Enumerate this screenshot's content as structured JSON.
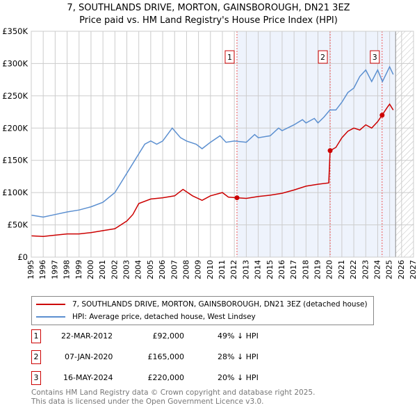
{
  "title": "7, SOUTHLANDS DRIVE, MORTON, GAINSBOROUGH, DN21 3EZ",
  "subtitle": "Price paid vs. HM Land Registry's House Price Index (HPI)",
  "colors": {
    "price": "#cc0000",
    "hpi": "#5b8fd0",
    "shade": "#eef3fc"
  },
  "chart_data": {
    "type": "line",
    "xlim": [
      1995,
      2027
    ],
    "ylim": [
      0,
      350000
    ],
    "x_ticks": [
      1995,
      1996,
      1997,
      1998,
      1999,
      2000,
      2001,
      2002,
      2003,
      2004,
      2005,
      2006,
      2007,
      2008,
      2009,
      2010,
      2011,
      2012,
      2013,
      2014,
      2015,
      2016,
      2017,
      2018,
      2019,
      2020,
      2021,
      2022,
      2023,
      2024,
      2025,
      2026,
      2027
    ],
    "y_ticks": [
      {
        "v": 0,
        "label": "£0"
      },
      {
        "v": 50000,
        "label": "£50K"
      },
      {
        "v": 100000,
        "label": "£100K"
      },
      {
        "v": 150000,
        "label": "£150K"
      },
      {
        "v": 200000,
        "label": "£200K"
      },
      {
        "v": 250000,
        "label": "£250K"
      },
      {
        "v": 300000,
        "label": "£300K"
      },
      {
        "v": 350000,
        "label": "£350K"
      }
    ],
    "data_end": 2025.5,
    "series": [
      {
        "name": "7, SOUTHLANDS DRIVE, MORTON, GAINSBOROUGH, DN21 3EZ (detached house)",
        "color": "#cc0000",
        "x": [
          1995,
          1996,
          1997,
          1998,
          1999,
          2000,
          2001,
          2002,
          2003,
          2003.5,
          2004,
          2005,
          2006,
          2007,
          2007.7,
          2008.5,
          2009.3,
          2010,
          2011,
          2011.5,
          2012.22,
          2013,
          2014,
          2015,
          2016,
          2017,
          2018,
          2019,
          2019.9,
          2020.02,
          2020.5,
          2021,
          2021.5,
          2022,
          2022.5,
          2023,
          2023.5,
          2024,
          2024.37,
          2024.8,
          2025,
          2025.3
        ],
        "y": [
          33000,
          32000,
          34000,
          36000,
          36000,
          38000,
          41000,
          44000,
          56000,
          66000,
          83000,
          90000,
          92000,
          95000,
          105000,
          95000,
          88000,
          95000,
          100000,
          93000,
          92000,
          91000,
          94000,
          96000,
          99000,
          104000,
          110000,
          113000,
          115000,
          165000,
          170000,
          185000,
          195000,
          200000,
          197000,
          205000,
          200000,
          210000,
          220000,
          232000,
          237000,
          228000
        ]
      },
      {
        "name": "HPI: Average price, detached house, West Lindsey",
        "color": "#5b8fd0",
        "x": [
          1995,
          1996,
          1997,
          1998,
          1999,
          2000,
          2001,
          2002,
          2003,
          2004,
          2004.5,
          2005,
          2005.5,
          2006,
          2006.8,
          2007.5,
          2008,
          2008.8,
          2009.3,
          2010,
          2010.8,
          2011.3,
          2012,
          2013,
          2013.7,
          2014,
          2015,
          2015.7,
          2016,
          2017,
          2017.7,
          2018,
          2018.7,
          2019,
          2019.5,
          2020,
          2020.5,
          2021,
          2021.5,
          2022,
          2022.5,
          2023,
          2023.5,
          2024,
          2024.4,
          2025,
          2025.3
        ],
        "y": [
          65000,
          62000,
          66000,
          70000,
          73000,
          78000,
          85000,
          100000,
          130000,
          160000,
          175000,
          180000,
          175000,
          180000,
          200000,
          185000,
          180000,
          175000,
          168000,
          178000,
          188000,
          178000,
          180000,
          178000,
          190000,
          185000,
          188000,
          200000,
          196000,
          205000,
          213000,
          208000,
          215000,
          208000,
          217000,
          228000,
          228000,
          240000,
          255000,
          262000,
          280000,
          290000,
          272000,
          290000,
          272000,
          295000,
          283000
        ]
      }
    ],
    "sales": [
      {
        "label": "1",
        "x": 2012.22,
        "y": 92000
      },
      {
        "label": "2",
        "x": 2020.02,
        "y": 165000
      },
      {
        "label": "3",
        "x": 2024.37,
        "y": 220000
      }
    ]
  },
  "legend": {
    "price": "7, SOUTHLANDS DRIVE, MORTON, GAINSBOROUGH, DN21 3EZ (detached house)",
    "hpi": "HPI: Average price, detached house, West Lindsey"
  },
  "sales_table": [
    {
      "num": "1",
      "date": "22-MAR-2012",
      "price": "£92,000",
      "diff": "49% ↓ HPI"
    },
    {
      "num": "2",
      "date": "07-JAN-2020",
      "price": "£165,000",
      "diff": "28% ↓ HPI"
    },
    {
      "num": "3",
      "date": "16-MAY-2024",
      "price": "£220,000",
      "diff": "20% ↓ HPI"
    }
  ],
  "footer": {
    "line1": "Contains HM Land Registry data © Crown copyright and database right 2025.",
    "line2": "This data is licensed under the Open Government Licence v3.0."
  }
}
